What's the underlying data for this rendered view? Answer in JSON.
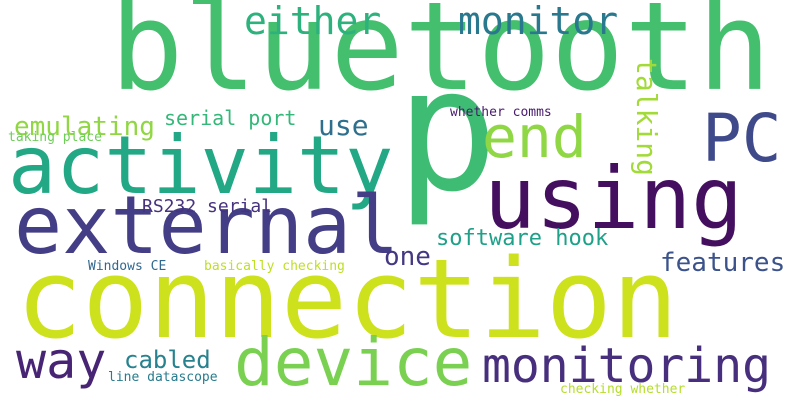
{
  "words": [
    {
      "text": "bluetooth",
      "color": "#43bf6e"
    },
    {
      "text": "connection",
      "color": "#cde11d"
    },
    {
      "text": "p",
      "color": "#3fbc73"
    },
    {
      "text": "activity",
      "color": "#22a884"
    },
    {
      "text": "external",
      "color": "#433e85"
    },
    {
      "text": "using",
      "color": "#440f5f"
    },
    {
      "text": "device",
      "color": "#7ad151"
    },
    {
      "text": "PC",
      "color": "#3f4a8a"
    },
    {
      "text": "end",
      "color": "#8fd744"
    },
    {
      "text": "monitoring",
      "color": "#472f7d"
    },
    {
      "text": "way",
      "color": "#482475"
    },
    {
      "text": "either",
      "color": "#2db27d"
    },
    {
      "text": "monitor",
      "color": "#2a788e"
    },
    {
      "text": "talking",
      "color": "#a2da37"
    },
    {
      "text": "emulating",
      "color": "#90d743"
    },
    {
      "text": "use",
      "color": "#2e6f8e"
    },
    {
      "text": "features",
      "color": "#3b528b"
    },
    {
      "text": "one",
      "color": "#453882"
    },
    {
      "text": "software hook",
      "color": "#1fa088"
    },
    {
      "text": "cabled",
      "color": "#26828e"
    },
    {
      "text": "serial port",
      "color": "#35b779"
    },
    {
      "text": "RS232 serial",
      "color": "#46327e"
    },
    {
      "text": "whether comms",
      "color": "#481b6d"
    },
    {
      "text": "taking place",
      "color": "#6ece58"
    },
    {
      "text": "Windows CE",
      "color": "#31688e"
    },
    {
      "text": "basically checking",
      "color": "#bddf26"
    },
    {
      "text": "line datascope",
      "color": "#287c8e"
    },
    {
      "text": "checking whether",
      "color": "#b5de2b"
    }
  ]
}
